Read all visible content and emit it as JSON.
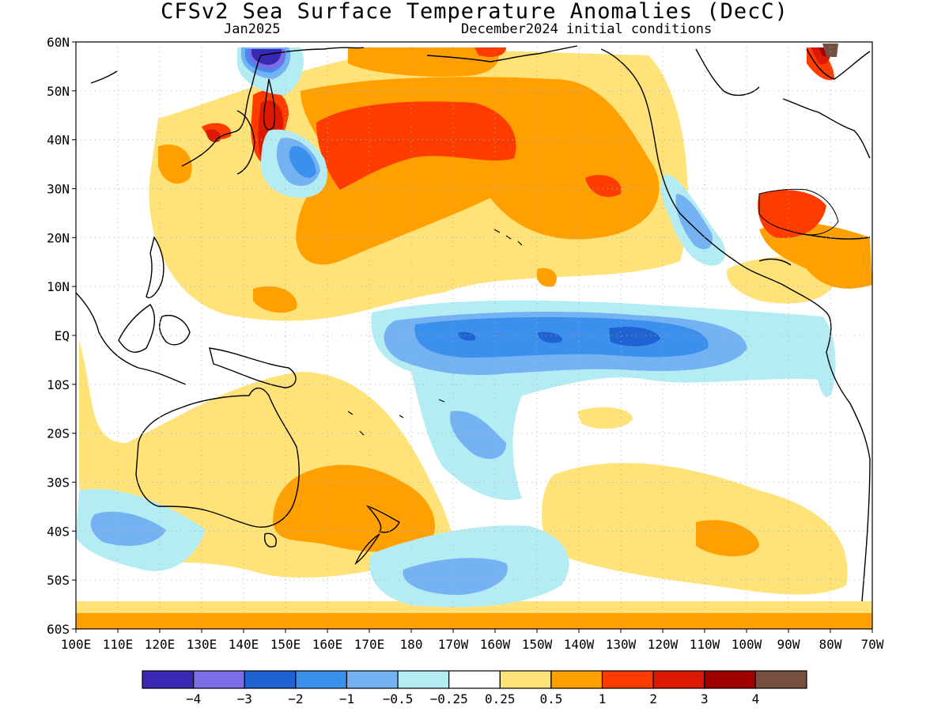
{
  "title": "CFSv2 Sea Surface Temperature Anomalies (DecC)",
  "subtitle_left": "Jan2025",
  "subtitle_right": "December2024 initial conditions",
  "chart_data": {
    "type": "heatmap",
    "lat_labels": [
      "60N",
      "50N",
      "40N",
      "30N",
      "20N",
      "10N",
      "EQ",
      "10S",
      "20S",
      "30S",
      "40S",
      "50S",
      "60S"
    ],
    "lon_labels": [
      "100E",
      "110E",
      "120E",
      "130E",
      "140E",
      "150E",
      "160E",
      "170E",
      "180",
      "170W",
      "160W",
      "150W",
      "140W",
      "130W",
      "120W",
      "110W",
      "100W",
      "90W",
      "80W",
      "70W"
    ],
    "colorbar": {
      "colors": [
        "#3a28b4",
        "#7b6ce8",
        "#1f62d2",
        "#3a90ec",
        "#74b2f4",
        "#b4ecf4",
        "#ffffff",
        "#ffe278",
        "#ffa000",
        "#ff3c00",
        "#dc1800",
        "#a00000",
        "#764f40"
      ],
      "labels": [
        "-4",
        "-3",
        "-2",
        "-1",
        "-0.5",
        "-0.25",
        "0.25",
        "0.5",
        "1",
        "2",
        "3",
        "4"
      ]
    }
  }
}
